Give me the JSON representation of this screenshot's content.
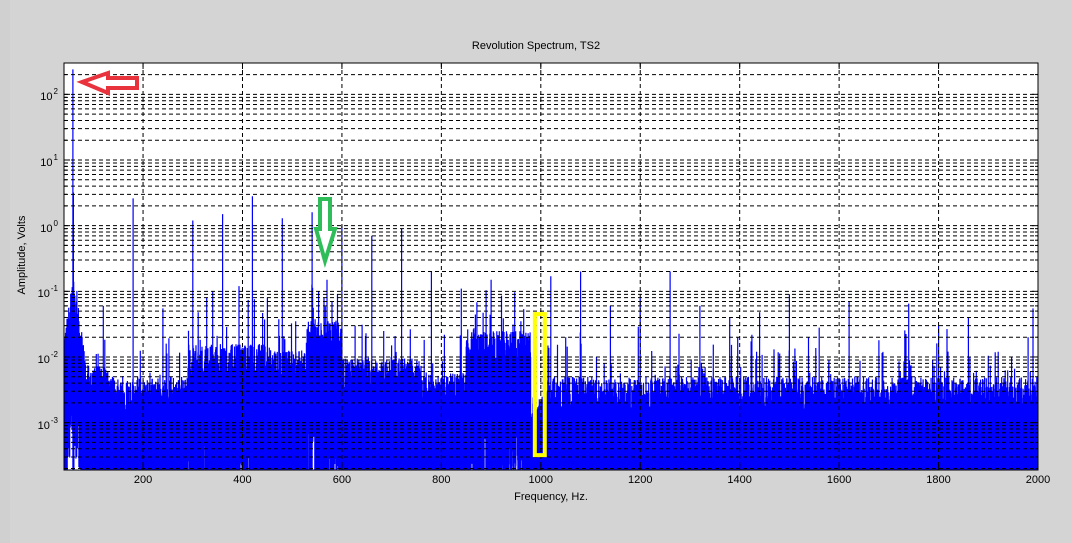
{
  "chart_data": {
    "type": "line",
    "title": "Revolution Spectrum, TS2",
    "xlabel": "Frequency, Hz.",
    "ylabel": "Amplitude, Volts",
    "xscale": "linear",
    "yscale": "log",
    "xlim": [
      41,
      2000
    ],
    "ylim": [
      0.00019,
      300
    ],
    "grid": true,
    "grid_style": "dashed-black",
    "legend": null,
    "series_color": "#0000ff",
    "x_ticks": [
      {
        "value": 200,
        "label": "200"
      },
      {
        "value": 400,
        "label": "400"
      },
      {
        "value": 600,
        "label": "600"
      },
      {
        "value": 800,
        "label": "800"
      },
      {
        "value": 1000,
        "label": "1000"
      },
      {
        "value": 1200,
        "label": "1200"
      },
      {
        "value": 1400,
        "label": "1400"
      },
      {
        "value": 1600,
        "label": "1600"
      },
      {
        "value": 1800,
        "label": "1800"
      },
      {
        "value": 2000,
        "label": "2000"
      }
    ],
    "y_ticks": [
      {
        "exp": 2,
        "base": "10",
        "sup": "2"
      },
      {
        "exp": 1,
        "base": "10",
        "sup": "1"
      },
      {
        "exp": 0,
        "base": "10",
        "sup": "0"
      },
      {
        "exp": -1,
        "base": "10",
        "sup": "-1"
      },
      {
        "exp": -2,
        "base": "10",
        "sup": "-2"
      },
      {
        "exp": -3,
        "base": "10",
        "sup": "-3"
      }
    ],
    "series": [
      {
        "name": "Revolution Spectrum",
        "peaks": [
          {
            "f": 59,
            "amp": 240
          },
          {
            "f": 60,
            "amp": 3.2
          },
          {
            "f": 61,
            "amp": 0.045
          },
          {
            "f": 120,
            "amp": 0.06
          },
          {
            "f": 180,
            "amp": 2.6
          },
          {
            "f": 240,
            "amp": 0.055
          },
          {
            "f": 300,
            "amp": 1.2
          },
          {
            "f": 340,
            "amp": 0.1
          },
          {
            "f": 360,
            "amp": 1.5
          },
          {
            "f": 393,
            "amp": 0.12
          },
          {
            "f": 420,
            "amp": 2.8
          },
          {
            "f": 450,
            "amp": 0.08
          },
          {
            "f": 480,
            "amp": 1.3
          },
          {
            "f": 540,
            "amp": 1.6
          },
          {
            "f": 553,
            "amp": 0.1
          },
          {
            "f": 564,
            "amp": 0.08
          },
          {
            "f": 570,
            "amp": 0.15
          },
          {
            "f": 580,
            "amp": 0.07
          },
          {
            "f": 600,
            "amp": 1.0
          },
          {
            "f": 660,
            "amp": 0.7
          },
          {
            "f": 700,
            "amp": 0.015
          },
          {
            "f": 720,
            "amp": 0.9
          },
          {
            "f": 780,
            "amp": 0.2
          },
          {
            "f": 840,
            "amp": 0.11
          },
          {
            "f": 900,
            "amp": 0.15
          },
          {
            "f": 960,
            "amp": 0.035
          },
          {
            "f": 1020,
            "amp": 0.17
          },
          {
            "f": 1080,
            "amp": 0.2
          },
          {
            "f": 1140,
            "amp": 0.06
          },
          {
            "f": 1200,
            "amp": 0.08
          },
          {
            "f": 1260,
            "amp": 0.2
          },
          {
            "f": 1320,
            "amp": 0.06
          },
          {
            "f": 1380,
            "amp": 0.04
          },
          {
            "f": 1440,
            "amp": 0.048
          },
          {
            "f": 1500,
            "amp": 0.09
          },
          {
            "f": 1560,
            "amp": 0.028
          },
          {
            "f": 1620,
            "amp": 0.07
          },
          {
            "f": 1680,
            "amp": 0.018
          },
          {
            "f": 1740,
            "amp": 0.065
          },
          {
            "f": 1800,
            "amp": 0.03
          },
          {
            "f": 1860,
            "amp": 0.04
          },
          {
            "f": 1920,
            "amp": 0.012
          },
          {
            "f": 1980,
            "amp": 0.02
          },
          {
            "f": 1990,
            "amp": 0.055
          }
        ],
        "noise_floor_bands": [
          {
            "f0": 41,
            "f1": 130,
            "level": 0.0012
          },
          {
            "f0": 130,
            "f1": 290,
            "level": 0.0008
          },
          {
            "f0": 290,
            "f1": 460,
            "level": 0.0025
          },
          {
            "f0": 460,
            "f1": 530,
            "level": 0.002
          },
          {
            "f0": 530,
            "f1": 600,
            "level": 0.006
          },
          {
            "f0": 600,
            "f1": 760,
            "level": 0.0015
          },
          {
            "f0": 760,
            "f1": 850,
            "level": 0.0009
          },
          {
            "f0": 850,
            "f1": 980,
            "level": 0.004
          },
          {
            "f0": 980,
            "f1": 1010,
            "level": 0.0004
          },
          {
            "f0": 1010,
            "f1": 2000,
            "level": 0.0008
          }
        ],
        "leakage_peak": {
          "f": 60,
          "width_hz": 25,
          "base": 0.03
        }
      }
    ],
    "annotations": [
      {
        "type": "arrow",
        "direction": "left",
        "color": "#e8323c",
        "near_f": 65,
        "near_amp": 150,
        "label": "red-arrow"
      },
      {
        "type": "arrow",
        "direction": "down",
        "color": "#2ebd59",
        "near_f": 563,
        "near_amp": 0.25,
        "label": "green-arrow"
      },
      {
        "type": "rectangle",
        "color": "#ffff00",
        "f0": 988,
        "f1": 1008,
        "amp_top": 0.045,
        "amp_bottom": 0.00032,
        "label": "yellow-box"
      }
    ]
  },
  "plot": {
    "title": "Revolution Spectrum, TS2",
    "xlabel": "Frequency, Hz.",
    "ylabel": "Amplitude, Volts"
  },
  "colors": {
    "background": "#d4d4d4",
    "axes_bg": "#ffffff",
    "trace": "#0000ff",
    "grid": "#000000",
    "red_arrow": "#e8323c",
    "green_arrow": "#2ebd59",
    "yellow_box": "#ffff00"
  }
}
